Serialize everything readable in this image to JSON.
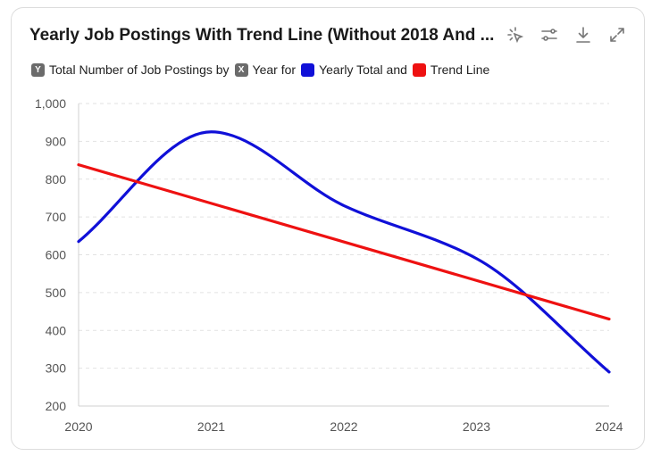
{
  "title": "Yearly Job Postings With Trend Line (Without 2018 And ...",
  "toolbar": [
    {
      "name": "select-icon"
    },
    {
      "name": "filter-settings-icon"
    },
    {
      "name": "download-icon"
    },
    {
      "name": "expand-icon"
    }
  ],
  "legend": {
    "y_badge": "Y",
    "y_text": "Total Number of Job Postings by",
    "x_badge": "X",
    "x_text": "Year for",
    "series1": "Yearly Total and",
    "series2": "Trend Line"
  },
  "colors": {
    "series1": "#1010d8",
    "series2": "#ee1111",
    "grid": "#e2e2e2"
  },
  "chart_data": {
    "type": "line",
    "x": [
      2020,
      2021,
      2022,
      2023,
      2024
    ],
    "xtick_labels": [
      "2020",
      "2021",
      "2022",
      "2023",
      "2024"
    ],
    "ytick_labels": [
      "1,000",
      "900",
      "800",
      "700",
      "600",
      "500",
      "400",
      "300",
      "200"
    ],
    "ylim": [
      200,
      1000
    ],
    "yticks": [
      1000,
      900,
      800,
      700,
      600,
      500,
      400,
      300,
      200
    ],
    "grid": true,
    "series": [
      {
        "name": "Yearly Total and",
        "smooth": true,
        "x": [
          2020,
          2021,
          2022,
          2023,
          2024
        ],
        "values": [
          635,
          925,
          730,
          590,
          290
        ]
      },
      {
        "name": "Trend Line",
        "smooth": false,
        "x": [
          2020,
          2024
        ],
        "values": [
          838,
          430
        ]
      }
    ]
  }
}
